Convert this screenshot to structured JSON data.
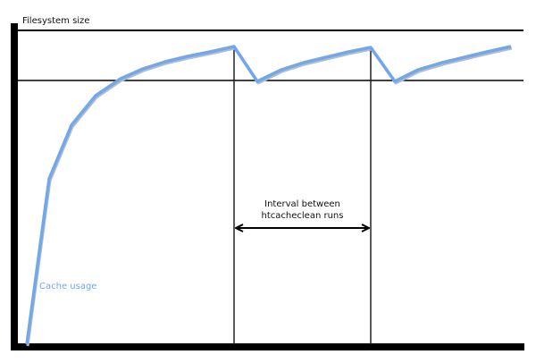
{
  "diagram": {
    "y_axis_label": "Filesystem size",
    "curve_label": "Cache usage",
    "interval_label_line1": "Interval between",
    "interval_label_line2": "htcacheclean runs",
    "curve_color": "#6fa8ef",
    "axis_color": "#000000"
  }
}
